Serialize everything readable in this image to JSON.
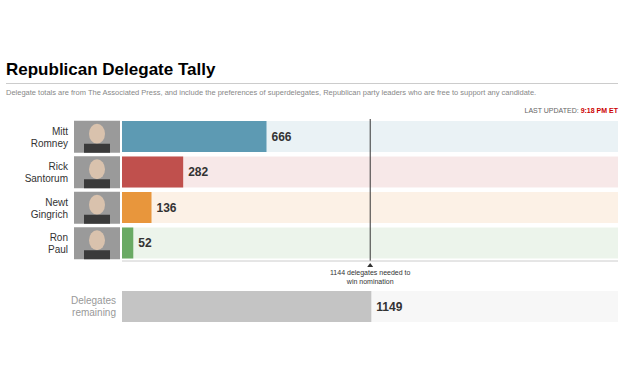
{
  "chart_data": [
    {
      "type": "bar",
      "title": "Republican Delegate Tally",
      "subtitle": "Delegate totals are from The Associated Press, and include the preferences of superdelegates, Republican party leaders who are free to support any candidate.",
      "last_updated_label": "LAST UPDATED:",
      "last_updated_time": "9:18 PM ET",
      "orientation": "horizontal",
      "categories": [
        "Mitt Romney",
        "Rick Santorum",
        "Newt Gingrich",
        "Ron Paul"
      ],
      "values": [
        666,
        282,
        136,
        52
      ],
      "colors": [
        "#5d9ab3",
        "#c0504d",
        "#e8963c",
        "#6aaa64"
      ],
      "xlim": [
        0,
        2286
      ],
      "data_labels": true,
      "tick_labels": "y",
      "annotation": {
        "value": 1144,
        "label": "1144 delegates needed to win nomination"
      }
    },
    {
      "type": "bar",
      "orientation": "horizontal",
      "categories": [
        "Delegates remaining"
      ],
      "values": [
        1149
      ],
      "color": "#c4c4c4",
      "xlim": [
        0,
        2286
      ],
      "data_labels": true,
      "tick_labels": "y"
    }
  ]
}
